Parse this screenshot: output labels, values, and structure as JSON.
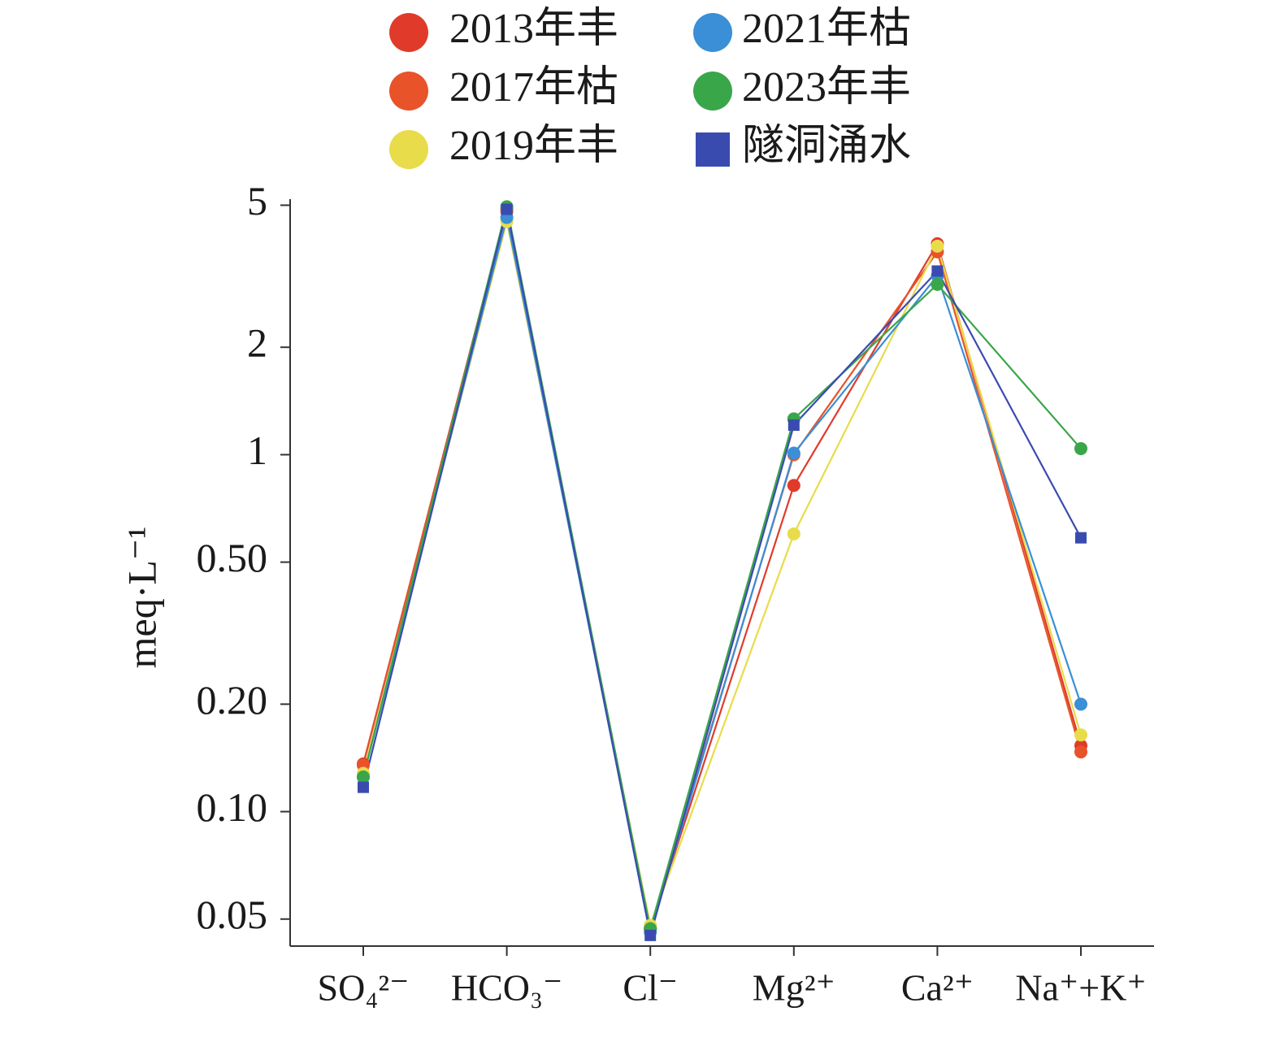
{
  "chart_data": {
    "type": "line",
    "log_y": true,
    "y_label": "meq·L⁻¹",
    "categories": [
      "SO₄²⁻",
      "HCO₃⁻",
      "Cl⁻",
      "Mg²⁺",
      "Ca²⁺",
      "Na⁺+K⁺"
    ],
    "series": [
      {
        "name": "2013年丰",
        "color": "#e03b2a",
        "marker": "circle",
        "values": [
          0.136,
          4.87,
          0.047,
          0.82,
          3.9,
          0.153
        ]
      },
      {
        "name": "2017年枯",
        "color": "#e8532a",
        "marker": "circle",
        "values": [
          0.135,
          4.8,
          0.047,
          1.0,
          3.7,
          0.147
        ]
      },
      {
        "name": "2019年丰",
        "color": "#e8dc4a",
        "marker": "circle",
        "values": [
          0.128,
          4.5,
          0.048,
          0.6,
          3.84,
          0.164
        ]
      },
      {
        "name": "2021年枯",
        "color": "#3a8fd6",
        "marker": "circle",
        "values": [
          0.125,
          4.62,
          0.046,
          1.01,
          3.17,
          0.2
        ]
      },
      {
        "name": "2023年丰",
        "color": "#3aa64a",
        "marker": "circle",
        "values": [
          0.125,
          4.95,
          0.047,
          1.26,
          3.0,
          1.04
        ]
      },
      {
        "name": "隧洞涌水",
        "color": "#3a4bb0",
        "marker": "square",
        "values": [
          0.117,
          4.87,
          0.045,
          1.21,
          3.27,
          0.585
        ]
      }
    ],
    "ylim": [
      0.042,
      5.2
    ],
    "yticks": [
      0.05,
      {
        "value": 0.1,
        "label": "0.10"
      },
      {
        "value": 0.2,
        "label": "0.20"
      },
      {
        "value": 0.5,
        "label": "0.50"
      },
      1,
      2,
      5
    ],
    "legend": "top"
  }
}
